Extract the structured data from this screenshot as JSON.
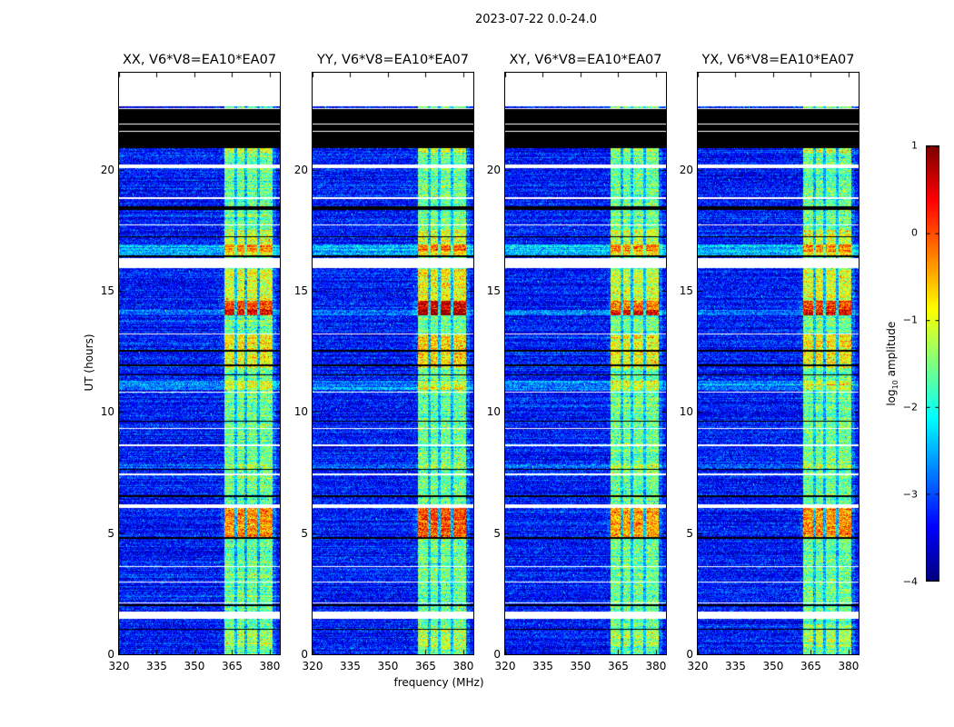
{
  "chart_data": {
    "type": "heatmap",
    "title": "2023-07-22 0.0-24.0",
    "xlabel": "frequency (MHz)",
    "ylabel": "UT (hours)",
    "xlim": [
      320,
      384
    ],
    "ylim": [
      0,
      24
    ],
    "xticks": [
      320,
      335,
      350,
      365,
      380
    ],
    "yticks": [
      0,
      5,
      10,
      15,
      20
    ],
    "colormap": "jet",
    "colorbar": {
      "label_prefix": "log",
      "label_sub": "10",
      "label_suffix": " amplitude",
      "range": [
        -4,
        1
      ],
      "ticks": [
        1,
        0,
        -1,
        -2,
        -3,
        -4
      ],
      "tick_labels": [
        "1",
        "0",
        "−1",
        "−2",
        "−3",
        "−4"
      ]
    },
    "panels": [
      {
        "title": "XX, V6*V8=EA10*EA07",
        "burst_scale": 0.8
      },
      {
        "title": "YY, V6*V8=EA10*EA07",
        "burst_scale": 1.0
      },
      {
        "title": "XY, V6*V8=EA10*EA07",
        "burst_scale": 0.7
      },
      {
        "title": "YX, V6*V8=EA10*EA07",
        "burst_scale": 0.8
      }
    ],
    "background_level": -3.3,
    "noise_sigma": 0.35,
    "band": {
      "range_mhz": [
        362,
        381
      ],
      "level": 1.7,
      "gaps_mhz": [
        366.5,
        370.5,
        375.5
      ]
    },
    "flagged_white_hours": [
      [
        22.6,
        24
      ],
      [
        20.05,
        20.2
      ],
      [
        15.95,
        16.35
      ],
      [
        6.05,
        6.2
      ],
      [
        1.45,
        1.75
      ],
      [
        18.8,
        18.85
      ],
      [
        17.7,
        17.75
      ],
      [
        13.2,
        13.25
      ],
      [
        10.8,
        10.85
      ],
      [
        9.3,
        9.35
      ],
      [
        8.6,
        8.65
      ],
      [
        7.4,
        7.45
      ],
      [
        3.6,
        3.65
      ],
      [
        2.95,
        3.0
      ],
      [
        2.1,
        2.15
      ],
      [
        21.55,
        21.6
      ],
      [
        21.85,
        21.9
      ],
      [
        22.5,
        22.55
      ]
    ],
    "flagged_black_hours": [
      [
        20.9,
        22.55
      ],
      [
        18.35,
        18.5
      ],
      [
        17.2,
        17.25
      ],
      [
        16.4,
        16.45
      ],
      [
        12.5,
        12.55
      ],
      [
        11.9,
        11.95
      ],
      [
        11.5,
        11.55
      ],
      [
        9.6,
        9.65
      ],
      [
        7.6,
        7.65
      ],
      [
        6.5,
        6.55
      ],
      [
        4.75,
        4.85
      ],
      [
        2.0,
        2.05
      ],
      [
        1.0,
        1.05
      ]
    ],
    "elevated_rows": [
      {
        "hours": [
          16.45,
          16.9
        ],
        "delta": 0.8
      },
      {
        "hours": [
          10.9,
          11.3
        ],
        "delta": 0.6
      },
      {
        "hours": [
          7.7,
          7.85
        ],
        "delta": 0.5
      },
      {
        "hours": [
          14.0,
          14.2
        ],
        "delta": 0.5
      }
    ],
    "bursts": [
      {
        "hours": [
          4.85,
          6.05
        ],
        "delta": 1.6
      },
      {
        "hours": [
          14.0,
          14.6
        ],
        "delta": 2.1
      },
      {
        "hours": [
          11.8,
          13.2
        ],
        "delta": 0.9
      },
      {
        "hours": [
          14.6,
          15.9
        ],
        "delta": 0.7
      },
      {
        "hours": [
          16.6,
          17.5
        ],
        "delta": 0.6
      },
      {
        "hours": [
          20.7,
          20.9
        ],
        "delta": 0.6
      },
      {
        "hours": [
          0.3,
          1.0
        ],
        "delta": 0.4
      }
    ]
  }
}
